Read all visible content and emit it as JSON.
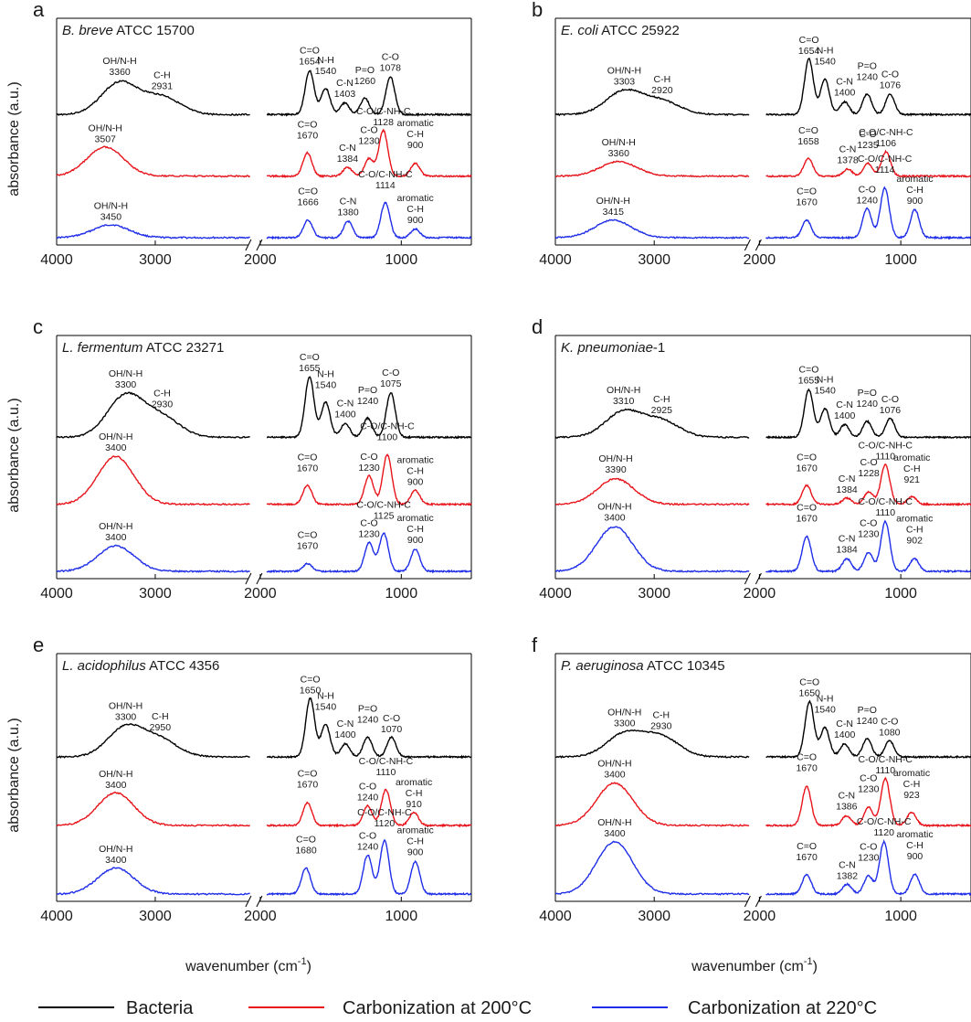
{
  "figure": {
    "ylabel": "absorbance (a.u.)",
    "xlabel_main": "wavenumber (cm",
    "xlabel_sup": "-1",
    "xlabel_close": ")",
    "legend": [
      {
        "label": "Bacteria",
        "color": "#000000"
      },
      {
        "label": "Carbonization at 200°C",
        "color": "#e8141b"
      },
      {
        "label": "Carbonization at 220°C",
        "color": "#1f2ee8"
      }
    ]
  },
  "chart_data": [
    {
      "type": "line",
      "letter": "a",
      "species": "B. breve",
      "strain": "ATCC 15700",
      "x_ticks": [
        "4000",
        "3000",
        "2000",
        "1000"
      ],
      "xlim_left": [
        4000,
        2000
      ],
      "xlim_right": [
        2000,
        500
      ],
      "series": [
        {
          "name": "Bacteria",
          "color": "#000000",
          "peaks": [
            {
              "label": "OH/N-H",
              "wn": 3360,
              "h": 0.55
            },
            {
              "label": "C-H",
              "wn": 2931,
              "h": 0.3
            },
            {
              "label": "C=O",
              "wn": 1654,
              "h": 0.75
            },
            {
              "label": "N-H",
              "wn": 1540,
              "h": 0.45
            },
            {
              "label": "C-N",
              "wn": 1403,
              "h": 0.2
            },
            {
              "label": "P=O",
              "wn": 1260,
              "h": 0.28
            },
            {
              "label": "C-O",
              "wn": 1078,
              "h": 0.65
            }
          ]
        },
        {
          "name": "Carbonization at 200°C",
          "color": "#e8141b",
          "peaks": [
            {
              "label": "OH/N-H",
              "wn": 3507,
              "h": 0.5
            },
            {
              "label": "C=O",
              "wn": 1670,
              "h": 0.4
            },
            {
              "label": "C-N",
              "wn": 1384,
              "h": 0.15
            },
            {
              "label": "C-O",
              "wn": 1230,
              "h": 0.3
            },
            {
              "label": "C-O/C-NH-C",
              "wn": 1128,
              "h": 0.78
            },
            {
              "label": "aromatic C-H",
              "wn": 900,
              "h": 0.22
            }
          ]
        },
        {
          "name": "Carbonization at 220°C",
          "color": "#1f2ee8",
          "peaks": [
            {
              "label": "OH/N-H",
              "wn": 3450,
              "h": 0.22
            },
            {
              "label": "C=O",
              "wn": 1666,
              "h": 0.3
            },
            {
              "label": "C-N",
              "wn": 1380,
              "h": 0.28
            },
            {
              "label": "C-O/C-NH-C",
              "wn": 1114,
              "h": 0.6
            },
            {
              "label": "aromatic C-H",
              "wn": 900,
              "h": 0.15
            }
          ]
        }
      ]
    },
    {
      "type": "line",
      "letter": "b",
      "species": "E. coli",
      "strain": "ATCC 25922",
      "x_ticks": [
        "4000",
        "3000",
        "2000",
        "1000"
      ],
      "xlim_left": [
        4000,
        2000
      ],
      "xlim_right": [
        2000,
        500
      ],
      "series": [
        {
          "name": "Bacteria",
          "color": "#000000",
          "peaks": [
            {
              "label": "OH/N-H",
              "wn": 3303,
              "h": 0.4
            },
            {
              "label": "C-H",
              "wn": 2920,
              "h": 0.22
            },
            {
              "label": "C=O",
              "wn": 1654,
              "h": 0.95
            },
            {
              "label": "N-H",
              "wn": 1540,
              "h": 0.6
            },
            {
              "label": "C-N",
              "wn": 1400,
              "h": 0.22
            },
            {
              "label": "P=O",
              "wn": 1240,
              "h": 0.35
            },
            {
              "label": "C-O",
              "wn": 1076,
              "h": 0.35
            }
          ]
        },
        {
          "name": "Carbonization at 200°C",
          "color": "#e8141b",
          "peaks": [
            {
              "label": "OH/N-H",
              "wn": 3360,
              "h": 0.25
            },
            {
              "label": "C=O",
              "wn": 1658,
              "h": 0.3
            },
            {
              "label": "C-N",
              "wn": 1378,
              "h": 0.12
            },
            {
              "label": "C-O",
              "wn": 1235,
              "h": 0.22
            },
            {
              "label": "C-O/C-NH-C",
              "wn": 1106,
              "h": 0.42
            }
          ]
        },
        {
          "name": "Carbonization at 220°C",
          "color": "#1f2ee8",
          "peaks": [
            {
              "label": "OH/N-H",
              "wn": 3415,
              "h": 0.3
            },
            {
              "label": "C=O",
              "wn": 1670,
              "h": 0.3
            },
            {
              "label": "C-O",
              "wn": 1240,
              "h": 0.5
            },
            {
              "label": "C-O/C-NH-C",
              "wn": 1114,
              "h": 0.85
            },
            {
              "label": "aromatic C-H",
              "wn": 900,
              "h": 0.48
            }
          ]
        }
      ]
    },
    {
      "type": "line",
      "letter": "c",
      "species": "L. fermentum",
      "strain": "ATCC 23271",
      "x_ticks": [
        "4000",
        "3000",
        "2000",
        "1000"
      ],
      "xlim_left": [
        4000,
        2000
      ],
      "xlim_right": [
        2000,
        500
      ],
      "series": [
        {
          "name": "Bacteria",
          "color": "#000000",
          "peaks": [
            {
              "label": "OH/N-H",
              "wn": 3300,
              "h": 0.65
            },
            {
              "label": "C-H",
              "wn": 2930,
              "h": 0.3
            },
            {
              "label": "C=O",
              "wn": 1655,
              "h": 0.95
            },
            {
              "label": "N-H",
              "wn": 1540,
              "h": 0.55
            },
            {
              "label": "C-N",
              "wn": 1400,
              "h": 0.22
            },
            {
              "label": "P=O",
              "wn": 1240,
              "h": 0.3
            },
            {
              "label": "C-O",
              "wn": 1075,
              "h": 0.7
            }
          ]
        },
        {
          "name": "Carbonization at 200°C",
          "color": "#e8141b",
          "peaks": [
            {
              "label": "OH/N-H",
              "wn": 3400,
              "h": 0.75
            },
            {
              "label": "C=O",
              "wn": 1670,
              "h": 0.3
            },
            {
              "label": "C-O",
              "wn": 1230,
              "h": 0.45
            },
            {
              "label": "C-O/C-NH-C",
              "wn": 1100,
              "h": 0.78
            },
            {
              "label": "aromatic C-H",
              "wn": 900,
              "h": 0.22
            }
          ]
        },
        {
          "name": "Carbonization at 220°C",
          "color": "#1f2ee8",
          "peaks": [
            {
              "label": "OH/N-H",
              "wn": 3400,
              "h": 0.4
            },
            {
              "label": "C=O",
              "wn": 1670,
              "h": 0.12
            },
            {
              "label": "C-O",
              "wn": 1230,
              "h": 0.45
            },
            {
              "label": "C-O/C-NH-C",
              "wn": 1125,
              "h": 0.6
            },
            {
              "label": "aromatic C-H",
              "wn": 900,
              "h": 0.35
            }
          ]
        }
      ]
    },
    {
      "type": "line",
      "letter": "d",
      "species": "K. pneumoniae",
      "strain": "-1",
      "x_ticks": [
        "4000",
        "3000",
        "2000",
        "1000"
      ],
      "xlim_left": [
        4000,
        2000
      ],
      "xlim_right": [
        2000,
        500
      ],
      "series": [
        {
          "name": "Bacteria",
          "color": "#000000",
          "peaks": [
            {
              "label": "OH/N-H",
              "wn": 3310,
              "h": 0.4
            },
            {
              "label": "C-H",
              "wn": 2925,
              "h": 0.25
            },
            {
              "label": "C=O",
              "wn": 1655,
              "h": 0.75
            },
            {
              "label": "N-H",
              "wn": 1540,
              "h": 0.45
            },
            {
              "label": "C-N",
              "wn": 1400,
              "h": 0.2
            },
            {
              "label": "P=O",
              "wn": 1240,
              "h": 0.25
            },
            {
              "label": "C-O",
              "wn": 1076,
              "h": 0.3
            }
          ]
        },
        {
          "name": "Carbonization at 200°C",
          "color": "#e8141b",
          "peaks": [
            {
              "label": "OH/N-H",
              "wn": 3390,
              "h": 0.4
            },
            {
              "label": "C=O",
              "wn": 1670,
              "h": 0.3
            },
            {
              "label": "C-N",
              "wn": 1384,
              "h": 0.1
            },
            {
              "label": "C-O",
              "wn": 1228,
              "h": 0.2
            },
            {
              "label": "C-O/C-NH-C",
              "wn": 1110,
              "h": 0.62
            },
            {
              "label": "aromatic C-H",
              "wn": 921,
              "h": 0.12
            }
          ]
        },
        {
          "name": "Carbonization at 220°C",
          "color": "#1f2ee8",
          "peaks": [
            {
              "label": "OH/N-H",
              "wn": 3400,
              "h": 0.7
            },
            {
              "label": "C=O",
              "wn": 1670,
              "h": 0.55
            },
            {
              "label": "C-N",
              "wn": 1384,
              "h": 0.2
            },
            {
              "label": "C-O",
              "wn": 1230,
              "h": 0.3
            },
            {
              "label": "C-O/C-NH-C",
              "wn": 1110,
              "h": 0.78
            },
            {
              "label": "aromatic C-H",
              "wn": 902,
              "h": 0.2
            }
          ]
        }
      ]
    },
    {
      "type": "line",
      "letter": "e",
      "species": "L. acidophilus",
      "strain": "ATCC 4356",
      "x_ticks": [
        "4000",
        "3000",
        "2000",
        "1000"
      ],
      "xlim_left": [
        4000,
        2000
      ],
      "xlim_right": [
        2000,
        500
      ],
      "series": [
        {
          "name": "Bacteria",
          "color": "#000000",
          "peaks": [
            {
              "label": "OH/N-H",
              "wn": 3300,
              "h": 0.45
            },
            {
              "label": "C-H",
              "wn": 2950,
              "h": 0.25
            },
            {
              "label": "C=O",
              "wn": 1650,
              "h": 0.9
            },
            {
              "label": "N-H",
              "wn": 1540,
              "h": 0.5
            },
            {
              "label": "C-N",
              "wn": 1400,
              "h": 0.2
            },
            {
              "label": "P=O",
              "wn": 1240,
              "h": 0.3
            },
            {
              "label": "C-O",
              "wn": 1070,
              "h": 0.3
            }
          ]
        },
        {
          "name": "Carbonization at 200°C",
          "color": "#e8141b",
          "peaks": [
            {
              "label": "OH/N-H",
              "wn": 3400,
              "h": 0.5
            },
            {
              "label": "C=O",
              "wn": 1670,
              "h": 0.35
            },
            {
              "label": "C-O",
              "wn": 1240,
              "h": 0.3
            },
            {
              "label": "C-O/C-NH-C",
              "wn": 1110,
              "h": 0.55
            },
            {
              "label": "aromatic C-H",
              "wn": 910,
              "h": 0.2
            }
          ]
        },
        {
          "name": "Carbonization at 220°C",
          "color": "#1f2ee8",
          "peaks": [
            {
              "label": "OH/N-H",
              "wn": 3400,
              "h": 0.4
            },
            {
              "label": "C=O",
              "wn": 1680,
              "h": 0.4
            },
            {
              "label": "C-O",
              "wn": 1240,
              "h": 0.6
            },
            {
              "label": "C-O/C-NH-C",
              "wn": 1120,
              "h": 0.82
            },
            {
              "label": "aromatic C-H",
              "wn": 900,
              "h": 0.5
            }
          ]
        }
      ]
    },
    {
      "type": "line",
      "letter": "f",
      "species": "P. aeruginosa",
      "strain": "ATCC 10345",
      "x_ticks": [
        "4000",
        "3000",
        "2000",
        "1000"
      ],
      "xlim_left": [
        4000,
        2000
      ],
      "xlim_right": [
        2000,
        500
      ],
      "series": [
        {
          "name": "Bacteria",
          "color": "#000000",
          "peaks": [
            {
              "label": "OH/N-H",
              "wn": 3300,
              "h": 0.35
            },
            {
              "label": "C-H",
              "wn": 2930,
              "h": 0.3
            },
            {
              "label": "C=O",
              "wn": 1650,
              "h": 0.85
            },
            {
              "label": "N-H",
              "wn": 1540,
              "h": 0.45
            },
            {
              "label": "C-N",
              "wn": 1400,
              "h": 0.2
            },
            {
              "label": "P=O",
              "wn": 1240,
              "h": 0.28
            },
            {
              "label": "C-O",
              "wn": 1080,
              "h": 0.25
            }
          ]
        },
        {
          "name": "Carbonization at 200°C",
          "color": "#e8141b",
          "peaks": [
            {
              "label": "OH/N-H",
              "wn": 3400,
              "h": 0.65
            },
            {
              "label": "C=O",
              "wn": 1670,
              "h": 0.6
            },
            {
              "label": "C-N",
              "wn": 1386,
              "h": 0.15
            },
            {
              "label": "C-O",
              "wn": 1230,
              "h": 0.28
            },
            {
              "label": "C-O/C-NH-C",
              "wn": 1110,
              "h": 0.72
            },
            {
              "label": "aromatic C-H",
              "wn": 923,
              "h": 0.2
            }
          ]
        },
        {
          "name": "Carbonization at 220°C",
          "color": "#1f2ee8",
          "peaks": [
            {
              "label": "OH/N-H",
              "wn": 3400,
              "h": 0.8
            },
            {
              "label": "C=O",
              "wn": 1670,
              "h": 0.3
            },
            {
              "label": "C-N",
              "wn": 1382,
              "h": 0.15
            },
            {
              "label": "C-O",
              "wn": 1230,
              "h": 0.28
            },
            {
              "label": "C-O/C-NH-C",
              "wn": 1120,
              "h": 0.8
            },
            {
              "label": "aromatic C-H",
              "wn": 900,
              "h": 0.3
            }
          ]
        }
      ]
    }
  ]
}
